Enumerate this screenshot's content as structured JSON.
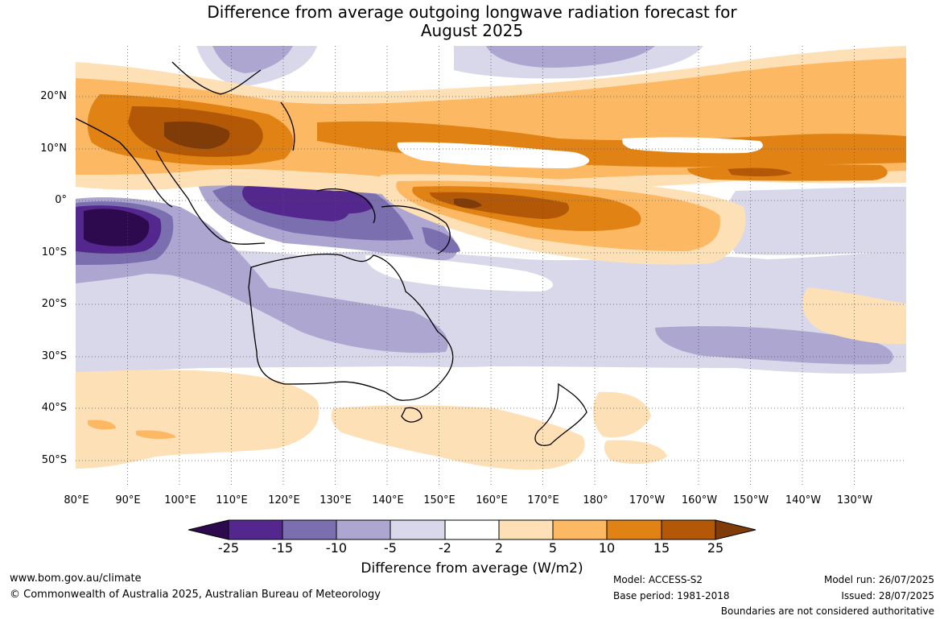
{
  "title_line1": "Difference from average outgoing longwave radiation forecast for",
  "title_line2": "August 2025",
  "lat_labels": [
    "20°N",
    "10°N",
    "0°",
    "10°S",
    "20°S",
    "30°S",
    "40°S",
    "50°S"
  ],
  "lon_labels": [
    "80°E",
    "90°E",
    "100°E",
    "110°E",
    "120°E",
    "130°E",
    "140°E",
    "150°E",
    "160°E",
    "170°E",
    "180°",
    "170°W",
    "160°W",
    "150°W",
    "140°W",
    "130°W"
  ],
  "colorbar": {
    "ticks": [
      "-25",
      "-15",
      "-10",
      "-5",
      "-2",
      "2",
      "5",
      "10",
      "15",
      "25"
    ],
    "colors": [
      "#2d0a4e",
      "#54278f",
      "#7b6fb0",
      "#aca6d0",
      "#d8d8ea",
      "#ffffff",
      "#fee0b6",
      "#fdb863",
      "#e08214",
      "#b35806",
      "#7f3b08"
    ],
    "title": "Difference from average (W/m2)"
  },
  "footer": {
    "website": "www.bom.gov.au/climate",
    "copyright": "© Commonwealth of Australia 2025, Australian Bureau of Meteorology",
    "model": "Model: ACCESS-S2",
    "base_period": "Base period: 1981-2018",
    "model_run": "Model run: 26/07/2025",
    "issued": "Issued: 28/07/2025",
    "disclaimer": "Boundaries are not considered authoritative"
  }
}
